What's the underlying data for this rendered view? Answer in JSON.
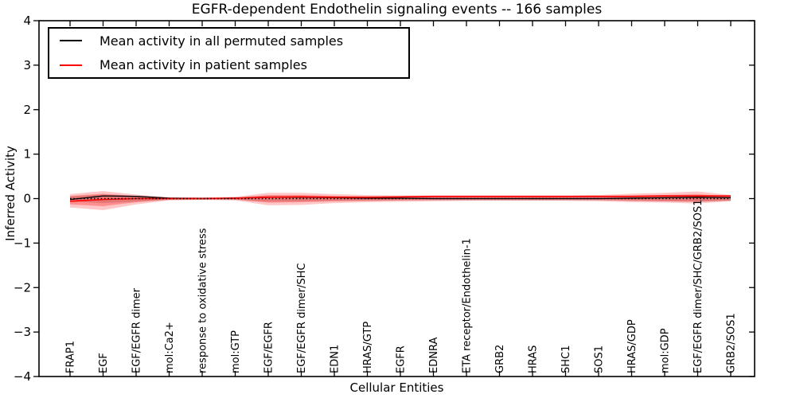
{
  "figure": {
    "title": "EGFR-dependent Endothelin signaling events -- 166 samples",
    "xlabel": "Cellular Entities",
    "ylabel": "Inferred Activity"
  },
  "legend": {
    "items": [
      {
        "label": "Mean activity in all permuted samples",
        "color": "#000000"
      },
      {
        "label": "Mean activity in patient samples",
        "color": "#ff0000"
      }
    ]
  },
  "chart_data": {
    "type": "line",
    "title": "EGFR-dependent Endothelin signaling events -- 166 samples",
    "xlabel": "Cellular Entities",
    "ylabel": "Inferred Activity",
    "ylim": [
      -4,
      4
    ],
    "yticks": [
      4,
      3,
      2,
      1,
      0,
      -1,
      -2,
      -3,
      -4
    ],
    "grid": false,
    "legend_position": "upper left",
    "zero_line": {
      "y": 0,
      "style": "dotted",
      "color": "#000000"
    },
    "categories": [
      "FRAP1",
      "EGF",
      "EGF/EGFR dimer",
      "mol:Ca2+",
      "response to oxidative stress",
      "mol:GTP",
      "EGF/EGFR",
      "EGF/EGFR dimer/SHC",
      "EDN1",
      "HRAS/GTP",
      "EGFR",
      "EDNRA",
      "ETA receptor/Endothelin-1",
      "GRB2",
      "HRAS",
      "SHC1",
      "SOS1",
      "HRAS/GDP",
      "mol:GDP",
      "EGF/EGFR dimer/SHC/GRB2/SOS1",
      "GRB2/SOS1"
    ],
    "series": [
      {
        "name": "Mean activity in all permuted samples",
        "color": "#000000",
        "values": [
          -0.02,
          0.06,
          0.05,
          0.01,
          0.0,
          0.01,
          0.03,
          0.03,
          0.02,
          0.01,
          0.01,
          0.0,
          0.0,
          0.0,
          0.0,
          0.0,
          0.0,
          0.01,
          0.02,
          0.03,
          0.02
        ]
      },
      {
        "name": "Mean activity in patient samples",
        "color": "#ff0000",
        "values": [
          -0.06,
          -0.02,
          0.0,
          0.0,
          0.0,
          0.01,
          0.03,
          0.04,
          0.03,
          0.03,
          0.04,
          0.05,
          0.05,
          0.05,
          0.05,
          0.05,
          0.05,
          0.05,
          0.06,
          0.06,
          0.06
        ]
      }
    ],
    "bands": [
      {
        "name": "permuted-samples-std",
        "color": "#555555",
        "opacity": 0.25,
        "upper": [
          0.05,
          0.09,
          0.06,
          0.02,
          0.02,
          0.03,
          0.06,
          0.06,
          0.05,
          0.04,
          0.04,
          0.04,
          0.04,
          0.04,
          0.04,
          0.04,
          0.04,
          0.05,
          0.06,
          0.07,
          0.05
        ],
        "lower": [
          -0.06,
          -0.1,
          -0.07,
          -0.03,
          -0.02,
          -0.03,
          -0.07,
          -0.06,
          -0.05,
          -0.05,
          -0.04,
          -0.04,
          -0.04,
          -0.04,
          -0.04,
          -0.04,
          -0.04,
          -0.05,
          -0.06,
          -0.07,
          -0.05
        ]
      },
      {
        "name": "patient-samples-std-outer",
        "color": "#ff0000",
        "opacity": 0.22,
        "upper": [
          0.1,
          0.17,
          0.09,
          0.03,
          0.03,
          0.04,
          0.13,
          0.13,
          0.1,
          0.08,
          0.07,
          0.07,
          0.07,
          0.07,
          0.07,
          0.07,
          0.08,
          0.11,
          0.13,
          0.16,
          0.08
        ],
        "lower": [
          -0.2,
          -0.26,
          -0.13,
          -0.04,
          -0.03,
          -0.04,
          -0.15,
          -0.14,
          -0.1,
          -0.08,
          -0.07,
          -0.06,
          -0.05,
          -0.05,
          -0.05,
          -0.05,
          -0.06,
          -0.08,
          -0.09,
          -0.11,
          -0.06
        ]
      },
      {
        "name": "patient-samples-std-inner",
        "color": "#ff0000",
        "opacity": 0.28,
        "upper": [
          0.06,
          0.11,
          0.06,
          0.02,
          0.02,
          0.02,
          0.08,
          0.08,
          0.06,
          0.05,
          0.04,
          0.04,
          0.04,
          0.04,
          0.04,
          0.04,
          0.05,
          0.07,
          0.08,
          0.1,
          0.05
        ],
        "lower": [
          -0.13,
          -0.17,
          -0.08,
          -0.02,
          -0.02,
          -0.02,
          -0.09,
          -0.08,
          -0.06,
          -0.05,
          -0.04,
          -0.03,
          -0.03,
          -0.03,
          -0.03,
          -0.03,
          -0.03,
          -0.05,
          -0.06,
          -0.07,
          -0.04
        ]
      }
    ]
  }
}
